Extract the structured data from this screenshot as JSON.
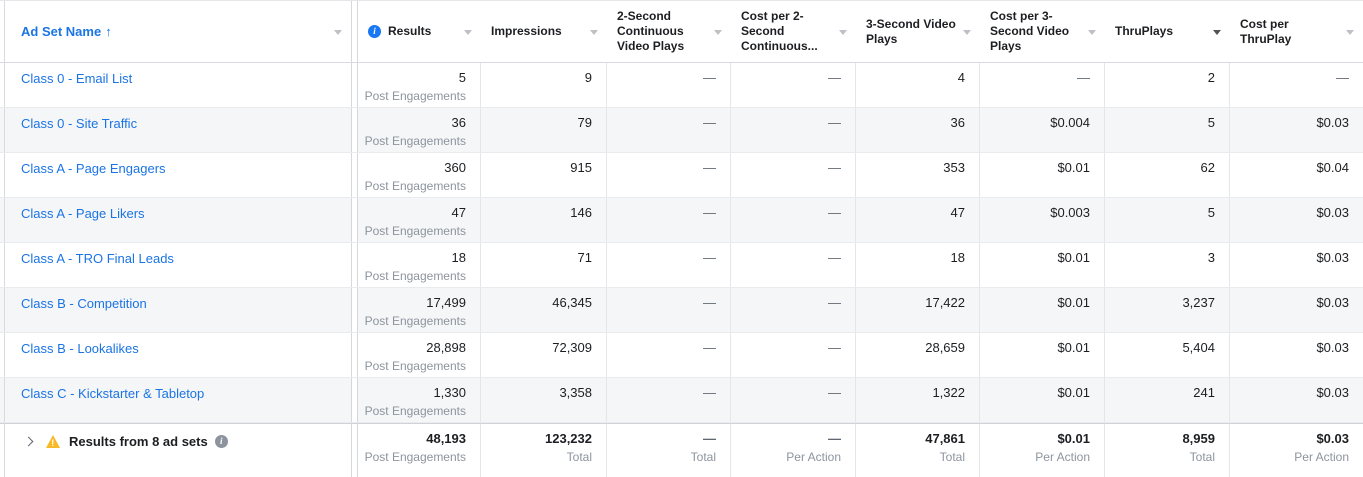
{
  "sort": {
    "column": "Ad Set Name",
    "direction": "ascending",
    "arrow": "↑"
  },
  "colors": {
    "link_blue": "#1b74e4",
    "info_blue": "#1877f2",
    "info_gray": "#8d949e",
    "warning_yellow": "#f7b928",
    "row_stripe": "#f5f6f7"
  },
  "icons": {
    "results_info": "info-i",
    "footer_info": "info-i",
    "footer_warning": "warning-triangle",
    "footer_expand": "chevron-right",
    "header_dropdown": "chevron-down"
  },
  "header": {
    "ad_set_name": "Ad Set Name",
    "results": "Results",
    "impressions": "Impressions",
    "p2": "2-Second Continuous Video Plays",
    "c2": "Cost per 2-Second Continuous...",
    "p3": "3-Second Video Plays",
    "c3": "Cost per 3-Second Video Plays",
    "tp": "ThruPlays",
    "ctp": "Cost per ThruPlay"
  },
  "rows": [
    {
      "name": "Class 0 - Email List",
      "results": "5",
      "results_sub": "Post Engagements",
      "impressions": "9",
      "p2": "—",
      "c2": "—",
      "p3": "4",
      "c3": "—",
      "tp": "2",
      "ctp": "—"
    },
    {
      "name": "Class 0 - Site Traffic",
      "results": "36",
      "results_sub": "Post Engagements",
      "impressions": "79",
      "p2": "—",
      "c2": "—",
      "p3": "36",
      "c3": "$0.004",
      "tp": "5",
      "ctp": "$0.03"
    },
    {
      "name": "Class A - Page Engagers",
      "results": "360",
      "results_sub": "Post Engagements",
      "impressions": "915",
      "p2": "—",
      "c2": "—",
      "p3": "353",
      "c3": "$0.01",
      "tp": "62",
      "ctp": "$0.04"
    },
    {
      "name": "Class A - Page Likers",
      "results": "47",
      "results_sub": "Post Engagements",
      "impressions": "146",
      "p2": "—",
      "c2": "—",
      "p3": "47",
      "c3": "$0.003",
      "tp": "5",
      "ctp": "$0.03"
    },
    {
      "name": "Class A - TRO Final Leads",
      "results": "18",
      "results_sub": "Post Engagements",
      "impressions": "71",
      "p2": "—",
      "c2": "—",
      "p3": "18",
      "c3": "$0.01",
      "tp": "3",
      "ctp": "$0.03"
    },
    {
      "name": "Class B - Competition",
      "results": "17,499",
      "results_sub": "Post Engagements",
      "impressions": "46,345",
      "p2": "—",
      "c2": "—",
      "p3": "17,422",
      "c3": "$0.01",
      "tp": "3,237",
      "ctp": "$0.03"
    },
    {
      "name": "Class B - Lookalikes",
      "results": "28,898",
      "results_sub": "Post Engagements",
      "impressions": "72,309",
      "p2": "—",
      "c2": "—",
      "p3": "28,659",
      "c3": "$0.01",
      "tp": "5,404",
      "ctp": "$0.03"
    },
    {
      "name": "Class C - Kickstarter & Tabletop",
      "results": "1,330",
      "results_sub": "Post Engagements",
      "impressions": "3,358",
      "p2": "—",
      "c2": "—",
      "p3": "1,322",
      "c3": "$0.01",
      "tp": "241",
      "ctp": "$0.03"
    }
  ],
  "footer": {
    "label": "Results from 8 ad sets",
    "results": {
      "val": "48,193",
      "sub": "Post Engagements"
    },
    "impressions": {
      "val": "123,232",
      "sub": "Total"
    },
    "p2": {
      "val": "—",
      "sub": "Total"
    },
    "c2": {
      "val": "—",
      "sub": "Per Action"
    },
    "p3": {
      "val": "47,861",
      "sub": "Total"
    },
    "c3": {
      "val": "$0.01",
      "sub": "Per Action"
    },
    "tp": {
      "val": "8,959",
      "sub": "Total"
    },
    "ctp": {
      "val": "$0.03",
      "sub": "Per Action"
    }
  }
}
